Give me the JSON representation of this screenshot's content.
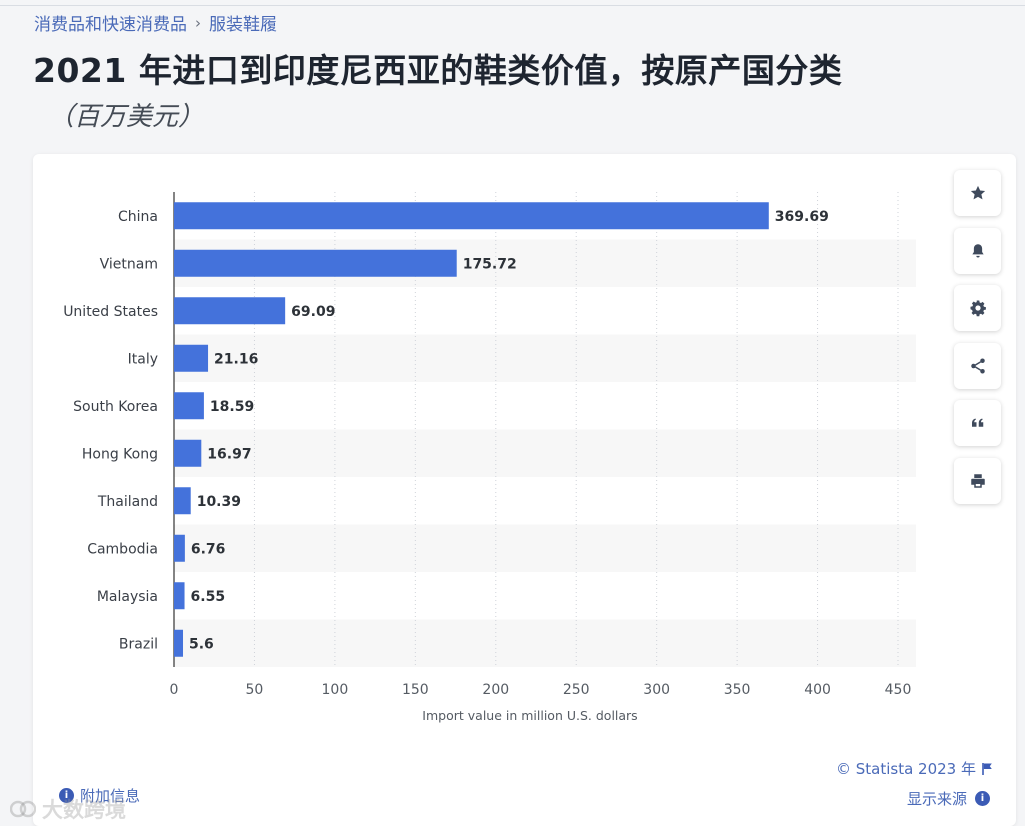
{
  "breadcrumb": {
    "parent": "消费品和快速消费品",
    "separator": "›",
    "current": "服装鞋履"
  },
  "title": "2021 年进口到印度尼西亚的鞋类价值，按原产国分类",
  "subtitle": "（百万美元）",
  "toolbar": [
    {
      "icon": "star-icon"
    },
    {
      "icon": "bell-icon"
    },
    {
      "icon": "gear-icon"
    },
    {
      "icon": "share-icon"
    },
    {
      "icon": "quote-icon"
    },
    {
      "icon": "print-icon"
    }
  ],
  "footer": {
    "credit": "© Statista 2023 年",
    "show_source": "显示来源",
    "additional_info": "附加信息"
  },
  "watermark": {
    "text": "大数跨境"
  },
  "colors": {
    "bar": "#4472db",
    "link": "#4a6ab8",
    "stripe": "#f7f7f7"
  },
  "chart_data": {
    "type": "bar",
    "orientation": "horizontal",
    "categories": [
      "China",
      "Vietnam",
      "United States",
      "Italy",
      "South Korea",
      "Hong Kong",
      "Thailand",
      "Cambodia",
      "Malaysia",
      "Brazil"
    ],
    "values": [
      369.69,
      175.72,
      69.09,
      21.16,
      18.59,
      16.97,
      10.39,
      6.76,
      6.55,
      5.6
    ],
    "value_labels": [
      "369.69",
      "175.72",
      "69.09",
      "21.16",
      "18.59",
      "16.97",
      "10.39",
      "6.76",
      "6.55",
      "5.6"
    ],
    "xlabel": "Import value in million U.S. dollars",
    "xlim": [
      0,
      450
    ],
    "xticks": [
      0,
      50,
      100,
      150,
      200,
      250,
      300,
      350,
      400,
      450
    ],
    "grid": "vertical dotted"
  }
}
